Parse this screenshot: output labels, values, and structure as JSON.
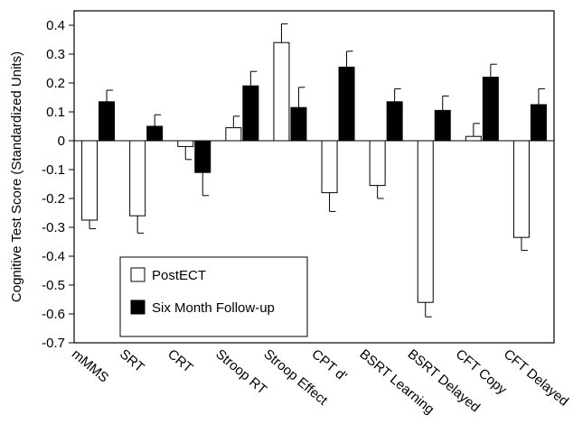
{
  "chart_data": {
    "type": "bar",
    "title": "",
    "xlabel": "",
    "ylabel": "Cognitive Test Score (Standardized Units)",
    "ylim": [
      -0.7,
      0.45
    ],
    "yticks": [
      -0.7,
      -0.6,
      -0.5,
      -0.4,
      -0.3,
      -0.2,
      -0.1,
      0,
      0.1,
      0.2,
      0.3,
      0.4
    ],
    "ytick_labels": [
      "-0.7",
      "-0.6",
      "-0.5",
      "-0.4",
      "-0.3",
      "-0.2",
      "-0.1",
      "0",
      "0.1",
      "0.2",
      "0.3",
      "0.4"
    ],
    "grid": false,
    "legend_position": "lower-left",
    "error_bars": true,
    "categories": [
      "mMMS",
      "SRT",
      "CRT",
      "Stroop RT",
      "Stroop Effect",
      "CPT d'",
      "BSRT Learning",
      "BSRT Delayed",
      "CFT Copy",
      "CFT Delayed"
    ],
    "series": [
      {
        "name": "PostECT",
        "color": "#ffffff",
        "values": [
          -0.275,
          -0.26,
          -0.02,
          0.045,
          0.34,
          -0.18,
          -0.155,
          -0.56,
          0.015,
          -0.335
        ],
        "errors": [
          0.03,
          0.06,
          0.045,
          0.04,
          0.065,
          0.065,
          0.045,
          0.05,
          0.045,
          0.045
        ]
      },
      {
        "name": "Six Month Follow-up",
        "color": "#000000",
        "values": [
          0.135,
          0.05,
          -0.11,
          0.19,
          0.115,
          0.255,
          0.135,
          0.105,
          0.22,
          0.125
        ],
        "errors": [
          0.04,
          0.04,
          0.08,
          0.05,
          0.07,
          0.055,
          0.045,
          0.05,
          0.045,
          0.055
        ]
      }
    ]
  }
}
